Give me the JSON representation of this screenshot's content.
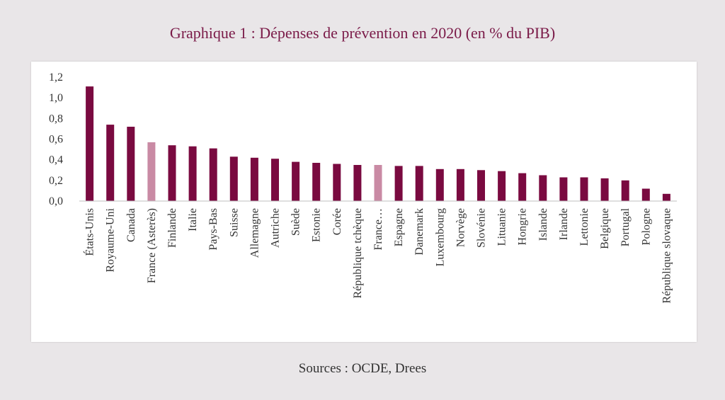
{
  "page": {
    "title": "Graphique 1 : Dépenses de prévention en 2020 (en % du PIB)",
    "source": "Sources : OCDE, Drees"
  },
  "colors": {
    "bar": "#7a0a40",
    "highlight": "#c98aa4",
    "axis": "#bfbfbf"
  },
  "chart_data": {
    "type": "bar",
    "title": "Graphique 1 : Dépenses de prévention en 2020 (en % du PIB)",
    "xlabel": "",
    "ylabel": "",
    "ylim": [
      0,
      1.2
    ],
    "yticks": [
      "0,0",
      "0,2",
      "0,4",
      "0,6",
      "0,8",
      "1,0",
      "1,2"
    ],
    "ytick_values": [
      0,
      0.2,
      0.4,
      0.6,
      0.8,
      1.0,
      1.2
    ],
    "grid": false,
    "categories": [
      "États-Unis",
      "Royaume-Uni",
      "Canada",
      "France (Asterès)",
      "Finlande",
      "Italie",
      "Pays-Bas",
      "Suisse",
      "Allemagne",
      "Autriche",
      "Suède",
      "Estonie",
      "Corée",
      "République tchèque",
      "France…",
      "Espagne",
      "Danemark",
      "Luxembourg",
      "Norvège",
      "Slovénie",
      "Lituanie",
      "Hongrie",
      "Islande",
      "Irlande",
      "Lettonie",
      "Belgique",
      "Portugal",
      "Pologne",
      "République slovaque"
    ],
    "values": [
      1.11,
      0.74,
      0.72,
      0.57,
      0.54,
      0.53,
      0.51,
      0.43,
      0.42,
      0.41,
      0.38,
      0.37,
      0.36,
      0.35,
      0.35,
      0.34,
      0.34,
      0.31,
      0.31,
      0.3,
      0.29,
      0.27,
      0.25,
      0.23,
      0.23,
      0.22,
      0.2,
      0.12,
      0.07
    ],
    "highlighted": [
      "France (Asterès)",
      "France…"
    ]
  }
}
